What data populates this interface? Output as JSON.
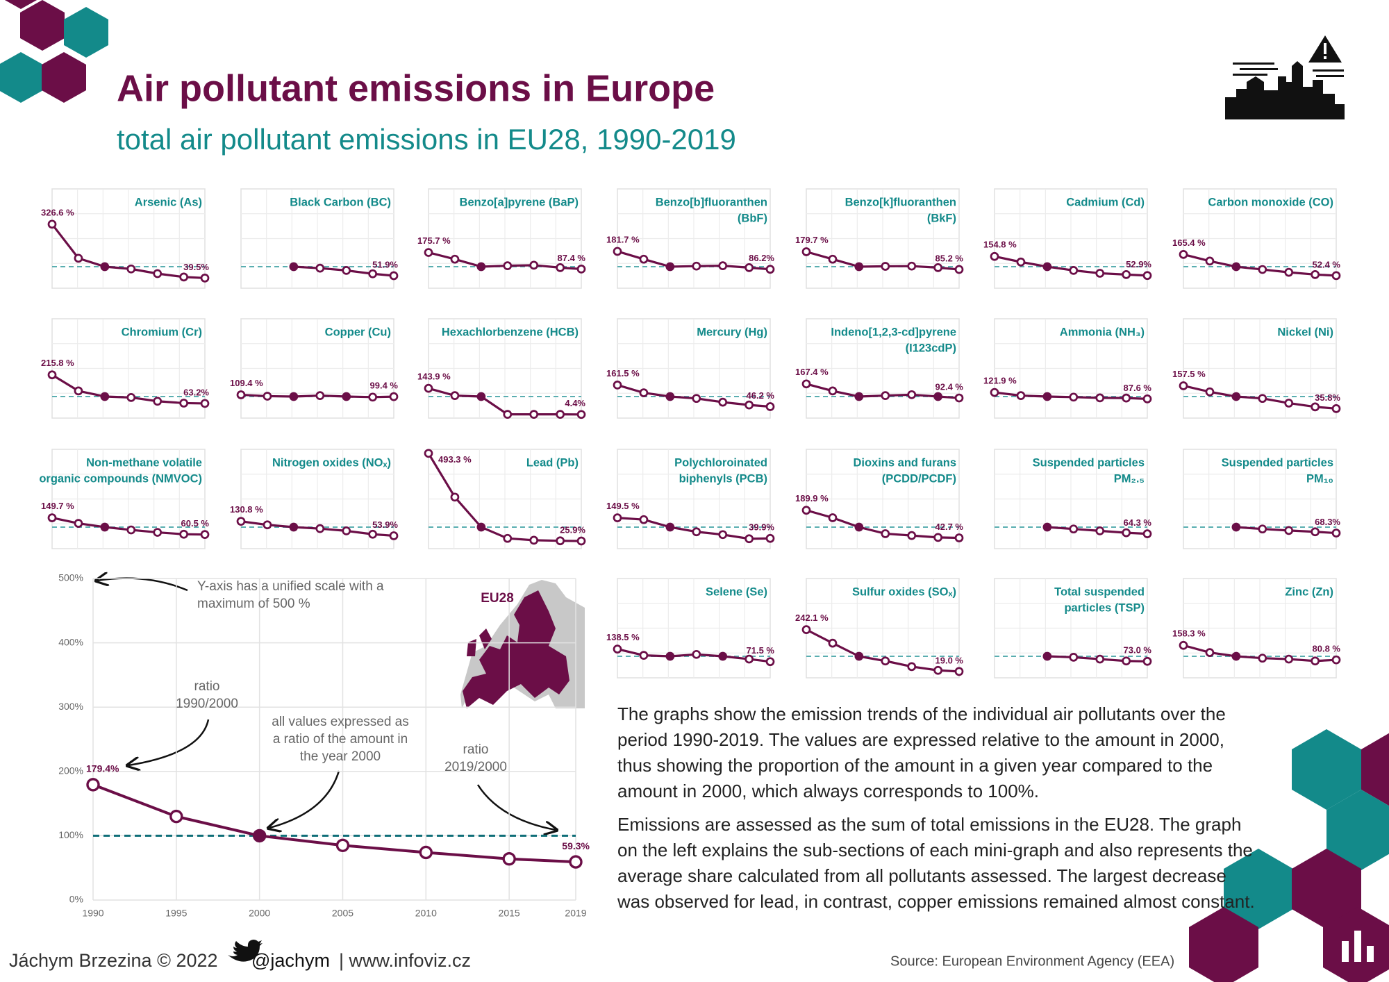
{
  "header": {
    "title": "Air pollutant emissions in Europe",
    "subtitle": "total air pollutant emissions in EU28, 1990-2019"
  },
  "chart_data": [
    {
      "type": "line",
      "x": [
        1990,
        1995,
        2000,
        2005,
        2010,
        2015,
        2019
      ],
      "xlim": [
        1990,
        2019
      ],
      "xticks": [
        1990,
        1995,
        2000,
        2005,
        2010,
        2015,
        2019
      ],
      "ylim": [
        0,
        500
      ],
      "yticks": [
        {
          "value": 0,
          "label": "0%"
        },
        {
          "value": 100,
          "label": "100%"
        },
        {
          "value": 200,
          "label": "200%"
        },
        {
          "value": 300,
          "label": "300%"
        },
        {
          "value": 400,
          "label": "400%"
        },
        {
          "value": 500,
          "label": "500%"
        }
      ],
      "grid": true,
      "color": "#6b0e47",
      "reference_line": 100,
      "values": [
        179.4,
        130,
        100,
        85,
        74,
        64,
        59.3
      ],
      "value_labels": [
        "179.4%",
        null,
        null,
        null,
        null,
        null,
        "59.3%"
      ],
      "annotations": [
        [
          "Y-axis has a unified scale with a",
          "maximum of 500 %"
        ],
        [
          "ratio",
          "1990/2000"
        ],
        [
          "all values expressed as",
          "a ratio of the amount in",
          "the year 2000"
        ],
        [
          "ratio",
          "2019/2000"
        ]
      ],
      "map_label": "EU28"
    },
    {
      "type": "line",
      "title": [
        "Arsenic (As)"
      ],
      "x": [
        1990,
        1995,
        2000,
        2005,
        2010,
        2015,
        2019
      ],
      "xlim": [
        1990,
        2019
      ],
      "ylim": [
        0,
        500
      ],
      "reference_line": 100,
      "color": "#6b0e47",
      "values": [
        326.6,
        145,
        100,
        88,
        63,
        45,
        39.5
      ],
      "value_labels": [
        "326.6 %",
        null,
        null,
        null,
        null,
        null,
        "39.5%"
      ]
    },
    {
      "type": "line",
      "title": [
        "Black Carbon (BC)"
      ],
      "x": [
        1990,
        1995,
        2000,
        2005,
        2010,
        2015,
        2019
      ],
      "xlim": [
        1990,
        2019
      ],
      "ylim": [
        0,
        500
      ],
      "reference_line": 100,
      "color": "#6b0e47",
      "values": [
        null,
        null,
        100,
        92,
        80,
        62,
        51.9
      ],
      "value_labels": [
        null,
        null,
        null,
        null,
        null,
        null,
        "51.9%"
      ]
    },
    {
      "type": "line",
      "title": [
        "Benzo[a]pyrene (BaP)"
      ],
      "x": [
        1990,
        1995,
        2000,
        2005,
        2010,
        2015,
        2019
      ],
      "xlim": [
        1990,
        2019
      ],
      "ylim": [
        0,
        500
      ],
      "reference_line": 100,
      "color": "#6b0e47",
      "values": [
        175.7,
        140,
        100,
        105,
        108,
        95,
        87.4
      ],
      "value_labels": [
        "175.7 %",
        null,
        null,
        null,
        null,
        null,
        "87.4 %"
      ]
    },
    {
      "type": "line",
      "title": [
        "Benzo[b]fluoranthen",
        "(BbF)"
      ],
      "x": [
        1990,
        1995,
        2000,
        2005,
        2010,
        2015,
        2019
      ],
      "xlim": [
        1990,
        2019
      ],
      "ylim": [
        0,
        500
      ],
      "reference_line": 100,
      "color": "#6b0e47",
      "values": [
        181.7,
        140,
        100,
        103,
        105,
        95,
        86.2
      ],
      "value_labels": [
        "181.7 %",
        null,
        null,
        null,
        null,
        null,
        "86.2%"
      ]
    },
    {
      "type": "line",
      "title": [
        "Benzo[k]fluoranthen",
        "(BkF)"
      ],
      "x": [
        1990,
        1995,
        2000,
        2005,
        2010,
        2015,
        2019
      ],
      "xlim": [
        1990,
        2019
      ],
      "ylim": [
        0,
        500
      ],
      "reference_line": 100,
      "color": "#6b0e47",
      "values": [
        179.7,
        140,
        100,
        102,
        103,
        95,
        85.2
      ],
      "value_labels": [
        "179.7 %",
        null,
        null,
        null,
        null,
        null,
        "85.2 %"
      ]
    },
    {
      "type": "line",
      "title": [
        "Cadmium (Cd)"
      ],
      "x": [
        1990,
        1995,
        2000,
        2005,
        2010,
        2015,
        2019
      ],
      "xlim": [
        1990,
        2019
      ],
      "ylim": [
        0,
        500
      ],
      "reference_line": 100,
      "color": "#6b0e47",
      "values": [
        154.8,
        125,
        100,
        80,
        65,
        58,
        52.9
      ],
      "value_labels": [
        "154.8 %",
        null,
        null,
        null,
        null,
        null,
        "52.9%"
      ]
    },
    {
      "type": "line",
      "title": [
        "Carbon monoxide (CO)"
      ],
      "x": [
        1990,
        1995,
        2000,
        2005,
        2010,
        2015,
        2019
      ],
      "xlim": [
        1990,
        2019
      ],
      "ylim": [
        0,
        500
      ],
      "reference_line": 100,
      "color": "#6b0e47",
      "values": [
        165.4,
        130,
        100,
        85,
        70,
        58,
        52.4
      ],
      "value_labels": [
        "165.4 %",
        null,
        null,
        null,
        null,
        null,
        "52.4 %"
      ]
    },
    {
      "type": "line",
      "title": [
        "Chromium (Cr)"
      ],
      "x": [
        1990,
        1995,
        2000,
        2005,
        2010,
        2015,
        2019
      ],
      "xlim": [
        1990,
        2019
      ],
      "ylim": [
        0,
        500
      ],
      "reference_line": 100,
      "color": "#6b0e47",
      "values": [
        215.8,
        130,
        100,
        95,
        75,
        65,
        63.2
      ],
      "value_labels": [
        "215.8 %",
        null,
        null,
        null,
        null,
        null,
        "63.2%"
      ]
    },
    {
      "type": "line",
      "title": [
        "Copper (Cu)"
      ],
      "x": [
        1990,
        1995,
        2000,
        2005,
        2010,
        2015,
        2019
      ],
      "xlim": [
        1990,
        2019
      ],
      "ylim": [
        0,
        500
      ],
      "reference_line": 100,
      "color": "#6b0e47",
      "values": [
        109.4,
        102,
        100,
        105,
        100,
        97,
        99.4
      ],
      "value_labels": [
        "109.4 %",
        null,
        null,
        null,
        null,
        null,
        "99.4 %"
      ]
    },
    {
      "type": "line",
      "title": [
        "Hexachlorbenzene (HCB)"
      ],
      "x": [
        1990,
        1995,
        2000,
        2005,
        2010,
        2015,
        2019
      ],
      "xlim": [
        1990,
        2019
      ],
      "ylim": [
        0,
        500
      ],
      "reference_line": 100,
      "color": "#6b0e47",
      "values": [
        143.9,
        105,
        100,
        5,
        5,
        5,
        4.4
      ],
      "value_labels": [
        "143.9 %",
        null,
        null,
        null,
        null,
        null,
        "4.4%"
      ]
    },
    {
      "type": "line",
      "title": [
        "Mercury (Hg)"
      ],
      "x": [
        1990,
        1995,
        2000,
        2005,
        2010,
        2015,
        2019
      ],
      "xlim": [
        1990,
        2019
      ],
      "ylim": [
        0,
        500
      ],
      "reference_line": 100,
      "color": "#6b0e47",
      "values": [
        161.5,
        120,
        100,
        90,
        70,
        55,
        46.2
      ],
      "value_labels": [
        "161.5 %",
        null,
        null,
        null,
        null,
        null,
        "46.2 %"
      ]
    },
    {
      "type": "line",
      "title": [
        "Indeno[1,2,3-cd]pyrene",
        "(I123cdP)"
      ],
      "x": [
        1990,
        1995,
        2000,
        2005,
        2010,
        2015,
        2019
      ],
      "xlim": [
        1990,
        2019
      ],
      "ylim": [
        0,
        500
      ],
      "reference_line": 100,
      "color": "#6b0e47",
      "values": [
        167.4,
        130,
        100,
        105,
        110,
        100,
        92.4
      ],
      "value_labels": [
        "167.4 %",
        null,
        null,
        null,
        null,
        null,
        "92.4 %"
      ]
    },
    {
      "type": "line",
      "title": [
        "Ammonia (NH₃)"
      ],
      "x": [
        1990,
        1995,
        2000,
        2005,
        2010,
        2015,
        2019
      ],
      "xlim": [
        1990,
        2019
      ],
      "ylim": [
        0,
        500
      ],
      "reference_line": 100,
      "color": "#6b0e47",
      "values": [
        121.9,
        105,
        100,
        97,
        93,
        92,
        87.6
      ],
      "value_labels": [
        "121.9 %",
        null,
        null,
        null,
        null,
        null,
        "87.6 %"
      ]
    },
    {
      "type": "line",
      "title": [
        "Nickel (Ni)"
      ],
      "x": [
        1990,
        1995,
        2000,
        2005,
        2010,
        2015,
        2019
      ],
      "xlim": [
        1990,
        2019
      ],
      "ylim": [
        0,
        500
      ],
      "reference_line": 100,
      "color": "#6b0e47",
      "values": [
        157.5,
        125,
        100,
        90,
        65,
        45,
        35.8
      ],
      "value_labels": [
        "157.5 %",
        null,
        null,
        null,
        null,
        null,
        "35.8%"
      ]
    },
    {
      "type": "line",
      "title": [
        "Non-methane volatile",
        "organic compounds (NMVOC)"
      ],
      "x": [
        1990,
        1995,
        2000,
        2005,
        2010,
        2015,
        2019
      ],
      "xlim": [
        1990,
        2019
      ],
      "ylim": [
        0,
        500
      ],
      "reference_line": 100,
      "color": "#6b0e47",
      "values": [
        149.7,
        120,
        100,
        85,
        72,
        62,
        60.5
      ],
      "value_labels": [
        "149.7 %",
        null,
        null,
        null,
        null,
        null,
        "60.5 %"
      ]
    },
    {
      "type": "line",
      "title": [
        "Nitrogen oxides (NOₓ)"
      ],
      "x": [
        1990,
        1995,
        2000,
        2005,
        2010,
        2015,
        2019
      ],
      "xlim": [
        1990,
        2019
      ],
      "ylim": [
        0,
        500
      ],
      "reference_line": 100,
      "color": "#6b0e47",
      "values": [
        130.8,
        112,
        100,
        92,
        80,
        62,
        53.9
      ],
      "value_labels": [
        "130.8 %",
        null,
        null,
        null,
        null,
        null,
        "53.9%"
      ]
    },
    {
      "type": "line",
      "title": [
        "Lead (Pb)"
      ],
      "x": [
        1990,
        1995,
        2000,
        2005,
        2010,
        2015,
        2019
      ],
      "xlim": [
        1990,
        2019
      ],
      "ylim": [
        0,
        500
      ],
      "reference_line": 100,
      "color": "#6b0e47",
      "values": [
        493.3,
        260,
        100,
        40,
        30,
        27,
        25.9
      ],
      "value_labels": [
        "493.3 %",
        null,
        null,
        null,
        null,
        null,
        "25.9%"
      ]
    },
    {
      "type": "line",
      "title": [
        "Polychloroinated",
        "biphenyls (PCB)"
      ],
      "x": [
        1990,
        1995,
        2000,
        2005,
        2010,
        2015,
        2019
      ],
      "xlim": [
        1990,
        2019
      ],
      "ylim": [
        0,
        500
      ],
      "reference_line": 100,
      "color": "#6b0e47",
      "values": [
        149.5,
        140,
        100,
        75,
        60,
        38,
        39.9
      ],
      "value_labels": [
        "149.5 %",
        null,
        null,
        null,
        null,
        null,
        "39.9%"
      ]
    },
    {
      "type": "line",
      "title": [
        "Dioxins and furans",
        "(PCDD/PCDF)"
      ],
      "x": [
        1990,
        1995,
        2000,
        2005,
        2010,
        2015,
        2019
      ],
      "xlim": [
        1990,
        2019
      ],
      "ylim": [
        0,
        500
      ],
      "reference_line": 100,
      "color": "#6b0e47",
      "values": [
        189.9,
        150,
        100,
        65,
        55,
        45,
        42.7
      ],
      "value_labels": [
        "189.9 %",
        null,
        null,
        null,
        null,
        null,
        "42.7 %"
      ]
    },
    {
      "type": "line",
      "title": [
        "Suspended particles",
        "PM₂.₅"
      ],
      "x": [
        1990,
        1995,
        2000,
        2005,
        2010,
        2015,
        2019
      ],
      "xlim": [
        1990,
        2019
      ],
      "ylim": [
        0,
        500
      ],
      "reference_line": 100,
      "color": "#6b0e47",
      "values": [
        null,
        null,
        100,
        90,
        80,
        70,
        64.3
      ],
      "value_labels": [
        null,
        null,
        null,
        null,
        null,
        null,
        "64.3 %"
      ]
    },
    {
      "type": "line",
      "title": [
        "Suspended particles",
        "PM₁₀"
      ],
      "x": [
        1990,
        1995,
        2000,
        2005,
        2010,
        2015,
        2019
      ],
      "xlim": [
        1990,
        2019
      ],
      "ylim": [
        0,
        500
      ],
      "reference_line": 100,
      "color": "#6b0e47",
      "values": [
        null,
        null,
        100,
        90,
        82,
        75,
        68.3
      ],
      "value_labels": [
        null,
        null,
        null,
        null,
        null,
        null,
        "68.3%"
      ]
    },
    {
      "type": "line",
      "title": [
        "Selene (Se)"
      ],
      "x": [
        1990,
        1995,
        2000,
        2005,
        2010,
        2015,
        2019
      ],
      "xlim": [
        1990,
        2019
      ],
      "ylim": [
        0,
        500
      ],
      "reference_line": 100,
      "color": "#6b0e47",
      "values": [
        138.5,
        105,
        100,
        110,
        100,
        85,
        71.5
      ],
      "value_labels": [
        "138.5 %",
        null,
        null,
        null,
        null,
        null,
        "71.5 %"
      ]
    },
    {
      "type": "line",
      "title": [
        "Sulfur oxides (SOₓ)"
      ],
      "x": [
        1990,
        1995,
        2000,
        2005,
        2010,
        2015,
        2019
      ],
      "xlim": [
        1990,
        2019
      ],
      "ylim": [
        0,
        500
      ],
      "reference_line": 100,
      "color": "#6b0e47",
      "values": [
        242.1,
        170,
        100,
        75,
        45,
        25,
        19.0
      ],
      "value_labels": [
        "242.1 %",
        null,
        null,
        null,
        null,
        null,
        "19.0 %"
      ]
    },
    {
      "type": "line",
      "title": [
        "Total suspended",
        "particles (TSP)"
      ],
      "x": [
        1990,
        1995,
        2000,
        2005,
        2010,
        2015,
        2019
      ],
      "xlim": [
        1990,
        2019
      ],
      "ylim": [
        0,
        500
      ],
      "reference_line": 100,
      "color": "#6b0e47",
      "values": [
        null,
        null,
        100,
        95,
        85,
        75,
        73.0
      ],
      "value_labels": [
        null,
        null,
        null,
        null,
        null,
        null,
        "73.0 %"
      ]
    },
    {
      "type": "line",
      "title": [
        "Zinc (Zn)"
      ],
      "x": [
        1990,
        1995,
        2000,
        2005,
        2010,
        2015,
        2019
      ],
      "xlim": [
        1990,
        2019
      ],
      "ylim": [
        0,
        500
      ],
      "reference_line": 100,
      "color": "#6b0e47",
      "values": [
        158.3,
        120,
        100,
        90,
        85,
        75,
        80.8
      ],
      "value_labels": [
        "158.3 %",
        null,
        null,
        null,
        null,
        null,
        "80.8 %"
      ]
    }
  ],
  "text": {
    "paragraphs": [
      "The graphs show the emission trends of the individual air pollutants over the period 1990-2019. The values are expressed relative to the amount in 2000, thus showing the proportion of the amount in a given year compared to the amount in 2000, which always corresponds to 100%.",
      "Emissions are assessed as the sum of total emissions in the EU28. The graph on the left explains the sub-sections of each mini-graph and also represents the average share calculated from all pollutants assessed. The largest decrease was observed for lead, in contrast, copper emissions remained almost constant."
    ]
  },
  "footer": {
    "author": "Jáchym Brzezina © 2022",
    "handle": "@jachym",
    "site": "| www.infoviz.cz",
    "source": "Source: European Environment Agency (EEA)"
  }
}
